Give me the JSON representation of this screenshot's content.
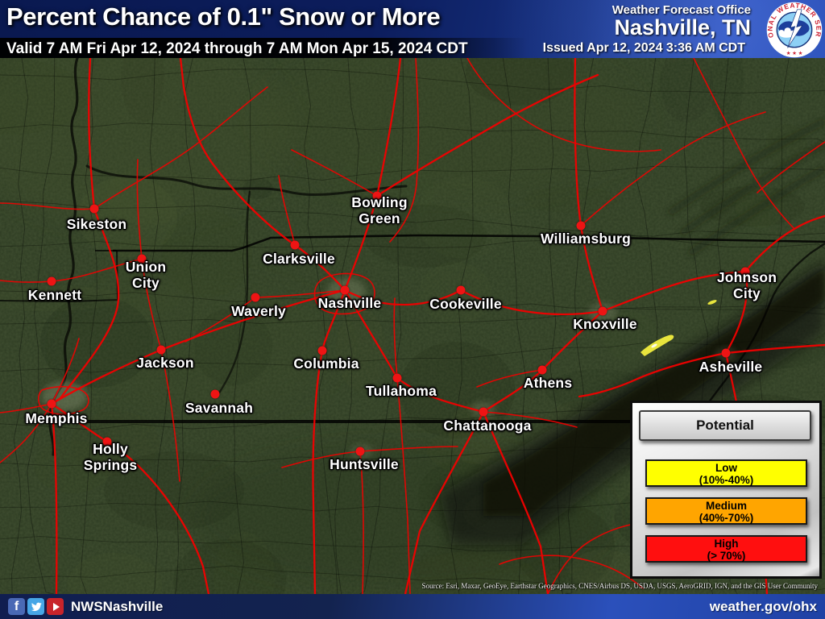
{
  "header": {
    "title": "Percent Chance of 0.1\" Snow or More",
    "valid_text": "Valid 7 AM Fri Apr 12, 2024 through 7 AM Mon Apr 15, 2024 CDT",
    "office_label": "Weather Forecast Office",
    "office_name": "Nashville, TN",
    "issued_text": "Issued Apr 12, 2024 3:36 AM CDT",
    "logo_ring_text": "NATIONAL WEATHER SERVICE",
    "logo_stars": "★ ★ ★"
  },
  "map": {
    "cities": [
      {
        "name": "Sikeston",
        "lines": [
          "Sikeston"
        ],
        "dot": [
          117,
          259
        ],
        "label": [
          120,
          278
        ]
      },
      {
        "name": "Kennett",
        "lines": [
          "Kennett"
        ],
        "dot": [
          64,
          349
        ],
        "label": [
          68,
          366
        ]
      },
      {
        "name": "Union City",
        "lines": [
          "Union",
          "City"
        ],
        "dot": [
          176,
          321
        ],
        "label": [
          181,
          341
        ]
      },
      {
        "name": "Waverly",
        "lines": [
          "Waverly"
        ],
        "dot": [
          317,
          369
        ],
        "label": [
          321,
          386
        ]
      },
      {
        "name": "Clarksville",
        "lines": [
          "Clarksville"
        ],
        "dot": [
          366,
          304
        ],
        "label": [
          371,
          321
        ]
      },
      {
        "name": "Bowling Green",
        "lines": [
          "Bowling",
          "Green"
        ],
        "dot": [
          468,
          243
        ],
        "label": [
          471,
          261
        ]
      },
      {
        "name": "Nashville",
        "lines": [
          "Nashville"
        ],
        "dot": [
          428,
          360
        ],
        "label": [
          434,
          376
        ]
      },
      {
        "name": "Cookeville",
        "lines": [
          "Cookeville"
        ],
        "dot": [
          572,
          360
        ],
        "label": [
          578,
          377
        ]
      },
      {
        "name": "Williamsburg",
        "lines": [
          "Williamsburg"
        ],
        "dot": [
          721,
          280
        ],
        "label": [
          727,
          296
        ]
      },
      {
        "name": "Johnson City",
        "lines": [
          "Johnson",
          "City"
        ],
        "dot": [
          925,
          337
        ],
        "label": [
          927,
          354
        ]
      },
      {
        "name": "Knoxville",
        "lines": [
          "Knoxville"
        ],
        "dot": [
          748,
          386
        ],
        "label": [
          751,
          402
        ]
      },
      {
        "name": "Asheville",
        "lines": [
          "Asheville"
        ],
        "dot": [
          901,
          438
        ],
        "label": [
          907,
          455
        ]
      },
      {
        "name": "Athens",
        "lines": [
          "Athens"
        ],
        "dot": [
          673,
          459
        ],
        "label": [
          680,
          475
        ]
      },
      {
        "name": "Jackson",
        "lines": [
          "Jackson"
        ],
        "dot": [
          200,
          434
        ],
        "label": [
          205,
          450
        ]
      },
      {
        "name": "Columbia",
        "lines": [
          "Columbia"
        ],
        "dot": [
          400,
          435
        ],
        "label": [
          405,
          451
        ]
      },
      {
        "name": "Tullahoma",
        "lines": [
          "Tullahoma"
        ],
        "dot": [
          493,
          469
        ],
        "label": [
          498,
          485
        ]
      },
      {
        "name": "Savannah",
        "lines": [
          "Savannah"
        ],
        "dot": [
          267,
          489
        ],
        "label": [
          272,
          506
        ]
      },
      {
        "name": "Chattanooga",
        "lines": [
          "Chattanooga"
        ],
        "dot": [
          600,
          511
        ],
        "label": [
          605,
          528
        ]
      },
      {
        "name": "Memphis",
        "lines": [
          "Memphis"
        ],
        "dot": [
          64,
          501
        ],
        "label": [
          70,
          519
        ]
      },
      {
        "name": "Holly Springs",
        "lines": [
          "Holly",
          "Springs"
        ],
        "dot": [
          133,
          548
        ],
        "label": [
          137,
          567
        ]
      },
      {
        "name": "Huntsville",
        "lines": [
          "Huntsville"
        ],
        "dot": [
          447,
          560
        ],
        "label": [
          452,
          576
        ]
      }
    ],
    "source_text": "Source: Esri, Maxar, GeoEye, Earthstar Geographics, CNES/Airbus DS, USDA, USGS, AeroGRID, IGN, and the GIS User Community"
  },
  "legend": {
    "title": "Potential",
    "items": [
      {
        "label": "Low",
        "range": "(10%-40%)",
        "color": "#ffff00"
      },
      {
        "label": "Medium",
        "range": "(40%-70%)",
        "color": "#ffa500"
      },
      {
        "label": "High",
        "range": "(> 70%)",
        "color": "#ff0f0f"
      }
    ]
  },
  "footer": {
    "handle": "NWSNashville",
    "url": "weather.gov/ohx",
    "icons": [
      "facebook-icon",
      "twitter-icon",
      "youtube-icon"
    ]
  },
  "colors": {
    "road_red": "#f20000",
    "city_dot_red": "#ee1414",
    "map_green": "#2e3c23",
    "header_blue": "#0c1d5c"
  }
}
